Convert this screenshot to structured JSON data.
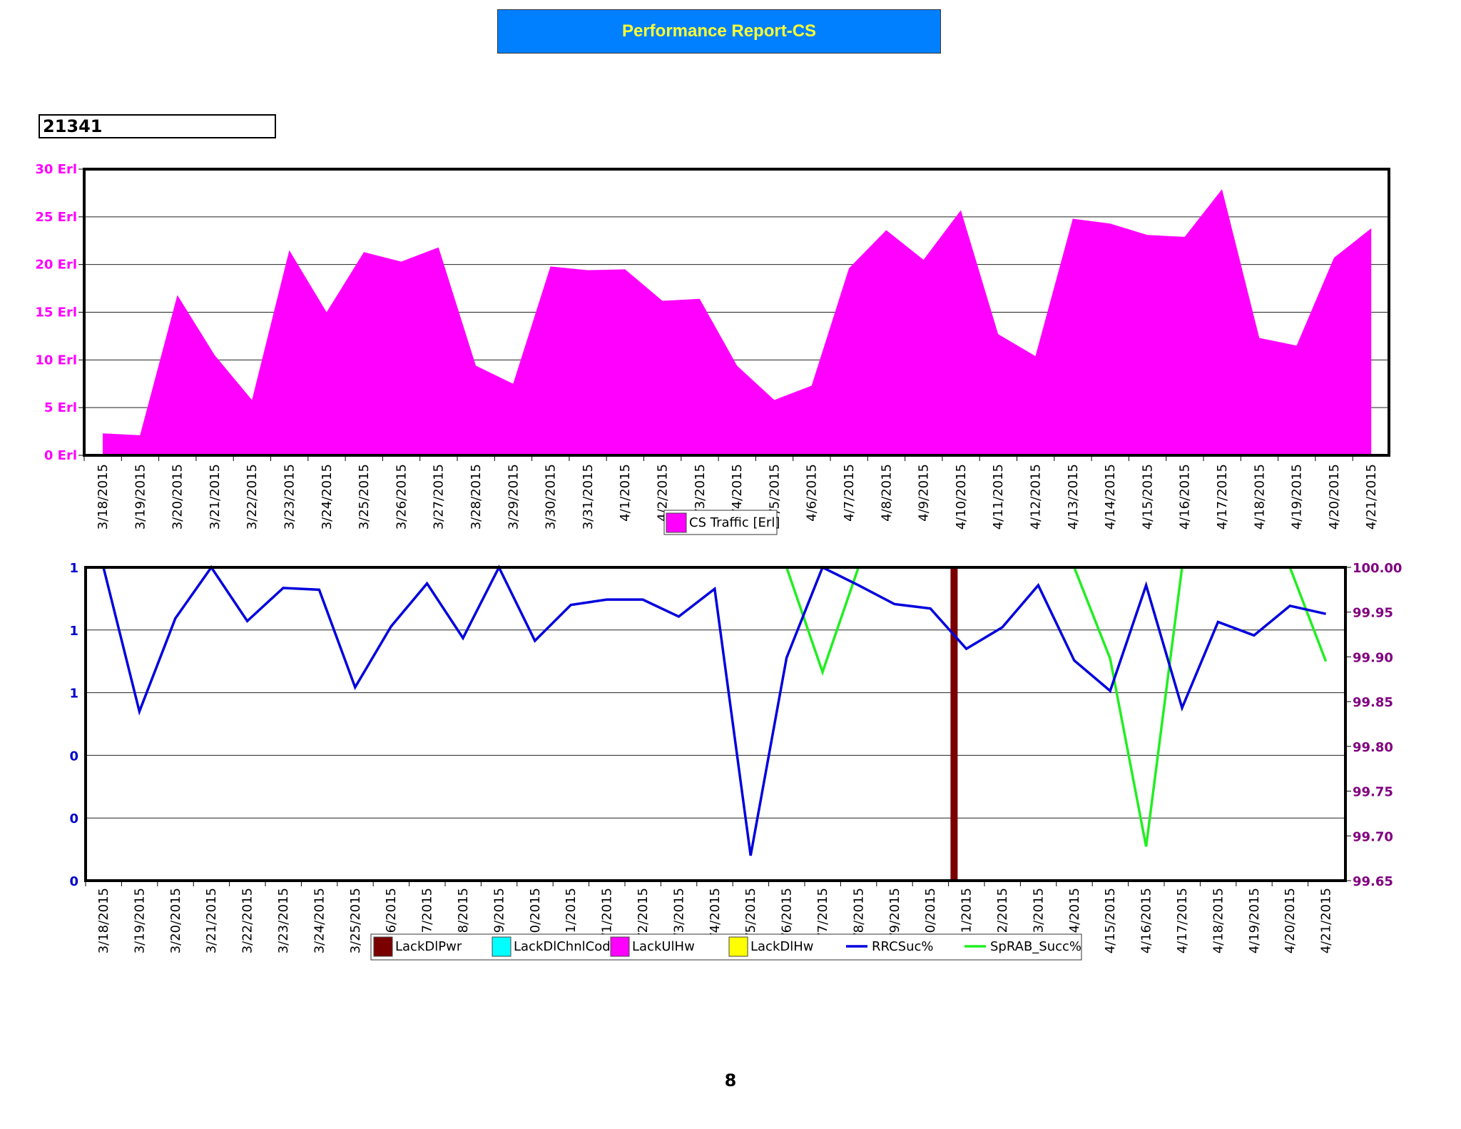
{
  "header": {
    "title": "Performance Report-CS",
    "cell_id": "21341"
  },
  "page_number": "8",
  "colors": {
    "title_bg": "#0080ff",
    "title_text": "#ffff33",
    "traffic": "#ff00ff",
    "rrc": "#0000dd",
    "sprab": "#22ee22",
    "lackdlpwr": "#7a0000",
    "lackdlchnlcode": "#00ffff",
    "lackulhw": "#ff00ff",
    "lackdlhw": "#ffff00",
    "left_axis": "#0000cc",
    "right_axis": "#800080"
  },
  "chart_data": [
    {
      "type": "area",
      "categories": [
        "3/18/2015",
        "3/19/2015",
        "3/20/2015",
        "3/21/2015",
        "3/22/2015",
        "3/23/2015",
        "3/24/2015",
        "3/25/2015",
        "3/26/2015",
        "3/27/2015",
        "3/28/2015",
        "3/29/2015",
        "3/30/2015",
        "3/31/2015",
        "4/1/2015",
        "4/2/2015",
        "4/3/2015",
        "4/4/2015",
        "4/5/2015",
        "4/6/2015",
        "4/7/2015",
        "4/8/2015",
        "4/9/2015",
        "4/10/2015",
        "4/11/2015",
        "4/12/2015",
        "4/13/2015",
        "4/14/2015",
        "4/15/2015",
        "4/16/2015",
        "4/17/2015",
        "4/18/2015",
        "4/19/2015",
        "4/20/2015",
        "4/21/2015"
      ],
      "tick_labels": [
        "3/18/2015",
        "3/19/2015",
        "3/20/2015",
        "3/21/2015",
        "3/22/2015",
        "3/23/2015",
        "3/24/2015",
        "3/25/2015",
        "3/26/2015",
        "3/27/2015",
        "3/28/2015",
        "3/29/2015",
        "3/30/2015",
        "3/31/2015",
        "4/1/2015",
        "4/2/2015",
        "/3/2015",
        "/4/2015",
        "/5/2015",
        "4/6/2015",
        "4/7/2015",
        "4/8/2015",
        "4/9/2015",
        "4/10/2015",
        "4/11/2015",
        "4/12/2015",
        "4/13/2015",
        "4/14/2015",
        "4/15/2015",
        "4/16/2015",
        "4/17/2015",
        "4/18/2015",
        "4/19/2015",
        "4/20/2015",
        "4/21/2015"
      ],
      "series": [
        {
          "name": "CS Traffic [Erl]",
          "values": [
            2.3,
            2.1,
            16.8,
            10.5,
            5.8,
            21.5,
            15.0,
            21.3,
            20.3,
            21.8,
            9.4,
            7.5,
            19.8,
            19.4,
            19.5,
            16.2,
            16.4,
            9.4,
            5.8,
            7.3,
            19.6,
            23.6,
            20.5,
            25.7,
            12.7,
            10.4,
            24.8,
            24.3,
            23.1,
            22.9,
            27.9,
            12.3,
            11.5,
            20.7,
            23.8
          ]
        }
      ],
      "ylim": [
        0,
        30
      ],
      "yticks": [
        "0 Erl",
        "5 Erl",
        "10 Erl",
        "15 Erl",
        "20 Erl",
        "25 Erl",
        "30 Erl"
      ],
      "legend_position": "bottom-center"
    },
    {
      "type": "line",
      "categories": [
        "3/18/2015",
        "3/19/2015",
        "3/20/2015",
        "3/21/2015",
        "3/22/2015",
        "3/23/2015",
        "3/24/2015",
        "3/25/2015",
        "3/26/2015",
        "3/27/2015",
        "3/28/2015",
        "3/29/2015",
        "3/30/2015",
        "3/31/2015",
        "4/1/2015",
        "4/2/2015",
        "4/3/2015",
        "4/4/2015",
        "4/5/2015",
        "4/6/2015",
        "4/7/2015",
        "4/8/2015",
        "4/9/2015",
        "4/10/2015",
        "4/11/2015",
        "4/12/2015",
        "4/13/2015",
        "4/14/2015",
        "4/15/2015",
        "4/16/2015",
        "4/17/2015",
        "4/18/2015",
        "4/19/2015",
        "4/20/2015",
        "4/21/2015"
      ],
      "tick_labels": [
        "3/18/2015",
        "3/19/2015",
        "3/20/2015",
        "3/21/2015",
        "3/22/2015",
        "3/23/2015",
        "3/24/2015",
        "3/25/2015",
        "26/2015",
        "27/2015",
        "28/2015",
        "29/2015",
        "30/2015",
        "31/2015",
        "/1/2015",
        "/2/2015",
        "/3/2015",
        "/4/2015",
        "/5/2015",
        "/6/2015",
        "/7/2015",
        "/8/2015",
        "/9/2015",
        "10/2015",
        "11/2015",
        "12/2015",
        "13/2015",
        "14/2015",
        "4/15/2015",
        "4/16/2015",
        "4/17/2015",
        "4/18/2015",
        "4/19/2015",
        "4/20/2015",
        "4/21/2015"
      ],
      "left_axis_ticks": [
        "0",
        "0",
        "0",
        "1",
        "1",
        "1"
      ],
      "right_axis_ticks": [
        "99.65",
        "99.70",
        "99.75",
        "99.80",
        "99.85",
        "99.90",
        "99.95",
        "100.00"
      ],
      "right_ylim": [
        99.65,
        100.0
      ],
      "series": [
        {
          "name": "LackDlPwr",
          "type": "bar",
          "axis": "left",
          "values": [
            0,
            0,
            0,
            0,
            0,
            0,
            0,
            0,
            0,
            0,
            0,
            0,
            0,
            0,
            0,
            0,
            0,
            0,
            0,
            0,
            0,
            0,
            0,
            0,
            1,
            0,
            0,
            0,
            0,
            0,
            0,
            0,
            0,
            0,
            0
          ]
        },
        {
          "name": "LackDlChnlCode",
          "type": "bar",
          "axis": "left",
          "values": [
            0,
            0,
            0,
            0,
            0,
            0,
            0,
            0,
            0,
            0,
            0,
            0,
            0,
            0,
            0,
            0,
            0,
            0,
            0,
            0,
            0,
            0,
            0,
            0,
            0,
            0,
            0,
            0,
            0,
            0,
            0,
            0,
            0,
            0,
            0
          ]
        },
        {
          "name": "LackUlHw",
          "type": "bar",
          "axis": "left",
          "values": [
            0,
            0,
            0,
            0,
            0,
            0,
            0,
            0,
            0,
            0,
            0,
            0,
            0,
            0,
            0,
            0,
            0,
            0,
            0,
            0,
            0,
            0,
            0,
            0,
            0,
            0,
            0,
            0,
            0,
            0,
            0,
            0,
            0,
            0,
            0
          ]
        },
        {
          "name": "LackDlHw",
          "type": "bar",
          "axis": "left",
          "values": [
            0,
            0,
            0,
            0,
            0,
            0,
            0,
            0,
            0,
            0,
            0,
            0,
            0,
            0,
            0,
            0,
            0,
            0,
            0,
            0,
            0,
            0,
            0,
            0,
            0,
            0,
            0,
            0,
            0,
            0,
            0,
            0,
            0,
            0,
            0
          ]
        },
        {
          "name": "RRCSuc%",
          "type": "line",
          "axis": "right",
          "values": [
            100.0,
            99.839,
            99.943,
            100.0,
            99.94,
            99.977,
            99.975,
            99.866,
            99.934,
            99.982,
            99.921,
            100.0,
            99.918,
            99.958,
            99.964,
            99.964,
            99.945,
            99.976,
            99.678,
            99.899,
            100.0,
            99.98,
            99.959,
            99.954,
            99.909,
            99.933,
            99.98,
            99.896,
            99.862,
            99.98,
            99.843,
            99.939,
            99.924,
            99.957,
            99.948
          ]
        },
        {
          "name": "SpRAB_Succ%",
          "type": "line",
          "axis": "right",
          "values": [
            100.0,
            100.0,
            100.0,
            100.0,
            100.0,
            100.0,
            100.0,
            100.0,
            100.0,
            100.0,
            100.0,
            100.0,
            100.0,
            100.0,
            100.0,
            100.0,
            100.0,
            100.0,
            100.0,
            100.0,
            99.883,
            100.0,
            100.0,
            100.0,
            100.0,
            100.0,
            100.0,
            100.0,
            99.898,
            99.688,
            100.0,
            100.0,
            100.0,
            100.0,
            99.895
          ]
        }
      ],
      "legend_position": "bottom-center"
    }
  ]
}
